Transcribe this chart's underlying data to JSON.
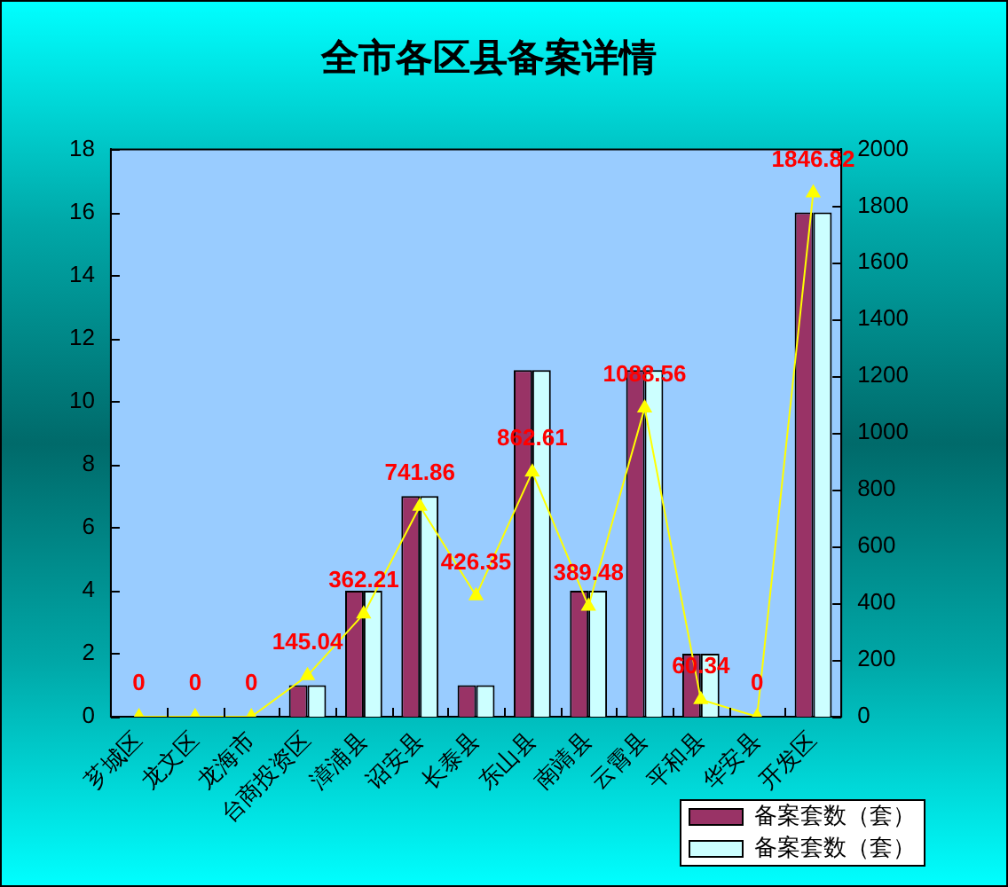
{
  "chart_data": {
    "type": "bar",
    "title": "全市各区县备案详情",
    "categories": [
      "芗城区",
      "龙文区",
      "龙海市",
      "台商投资区",
      "漳浦县",
      "诏安县",
      "长泰县",
      "东山县",
      "南靖县",
      "云霄县",
      "平和县",
      "华安县",
      "开发区"
    ],
    "series": [
      {
        "name": "备案套数（套）",
        "color": "#993366",
        "values": [
          0,
          0,
          0,
          1,
          4,
          7,
          1,
          11,
          4,
          11,
          2,
          0,
          16
        ]
      },
      {
        "name": "备案套数（套）",
        "color": "#ccffff",
        "values": [
          0,
          0,
          0,
          1,
          4,
          7,
          1,
          11,
          4,
          11,
          2,
          0,
          16
        ]
      },
      {
        "type": "line",
        "axis": "y2",
        "color": "#ffff00",
        "values": [
          0,
          0,
          0,
          145.04,
          362.21,
          741.86,
          426.35,
          862.61,
          389.48,
          1088.56,
          60.34,
          0,
          1846.82
        ],
        "value_labels": [
          "0",
          "0",
          "0",
          "145.04",
          "362.21",
          "741.86",
          "426.35",
          "862.61",
          "389.48",
          "1088.56",
          "60.34",
          "0",
          "1846.82"
        ]
      }
    ],
    "ylim": [
      0,
      18
    ],
    "yticks": [
      0,
      2,
      4,
      6,
      8,
      10,
      12,
      14,
      16,
      18
    ],
    "y2lim": [
      0,
      2000
    ],
    "y2ticks": [
      0,
      200,
      400,
      600,
      800,
      1000,
      1200,
      1400,
      1600,
      1800,
      2000
    ],
    "grid": false,
    "legend": "bottom right",
    "marker": "triangle"
  }
}
